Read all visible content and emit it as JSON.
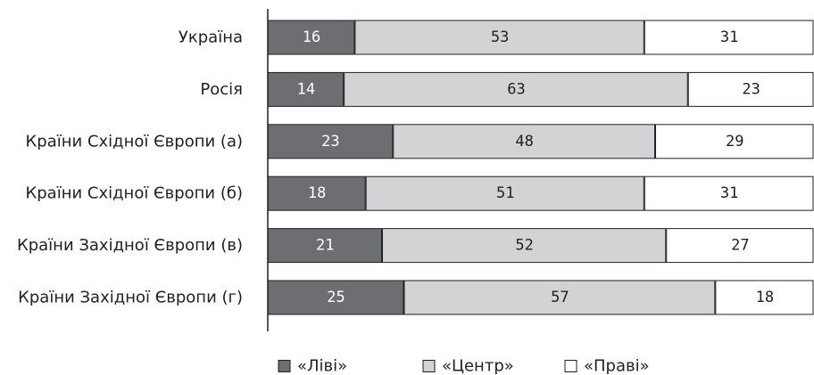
{
  "chart_data": {
    "type": "bar",
    "orientation": "horizontal",
    "stacked": true,
    "categories": [
      "Україна",
      "Росія",
      "Країни Східної Європи (а)",
      "Країни Східної Європи (б)",
      "Країни Західної Європи (в)",
      "Країни Західної Європи (г)"
    ],
    "series": [
      {
        "name": "«Ліві»",
        "values": [
          16,
          14,
          23,
          18,
          21,
          25
        ],
        "color": "#6d6e71",
        "label_color": "#ffffff"
      },
      {
        "name": "«Центр»",
        "values": [
          53,
          63,
          48,
          51,
          52,
          57
        ],
        "color": "#d1d3d4",
        "label_color": "#231f20"
      },
      {
        "name": "«Праві»",
        "values": [
          31,
          23,
          29,
          31,
          27,
          18
        ],
        "color": "#ffffff",
        "label_color": "#231f20"
      }
    ],
    "xlim": [
      0,
      100
    ],
    "grid": false,
    "legend_position": "bottom"
  }
}
